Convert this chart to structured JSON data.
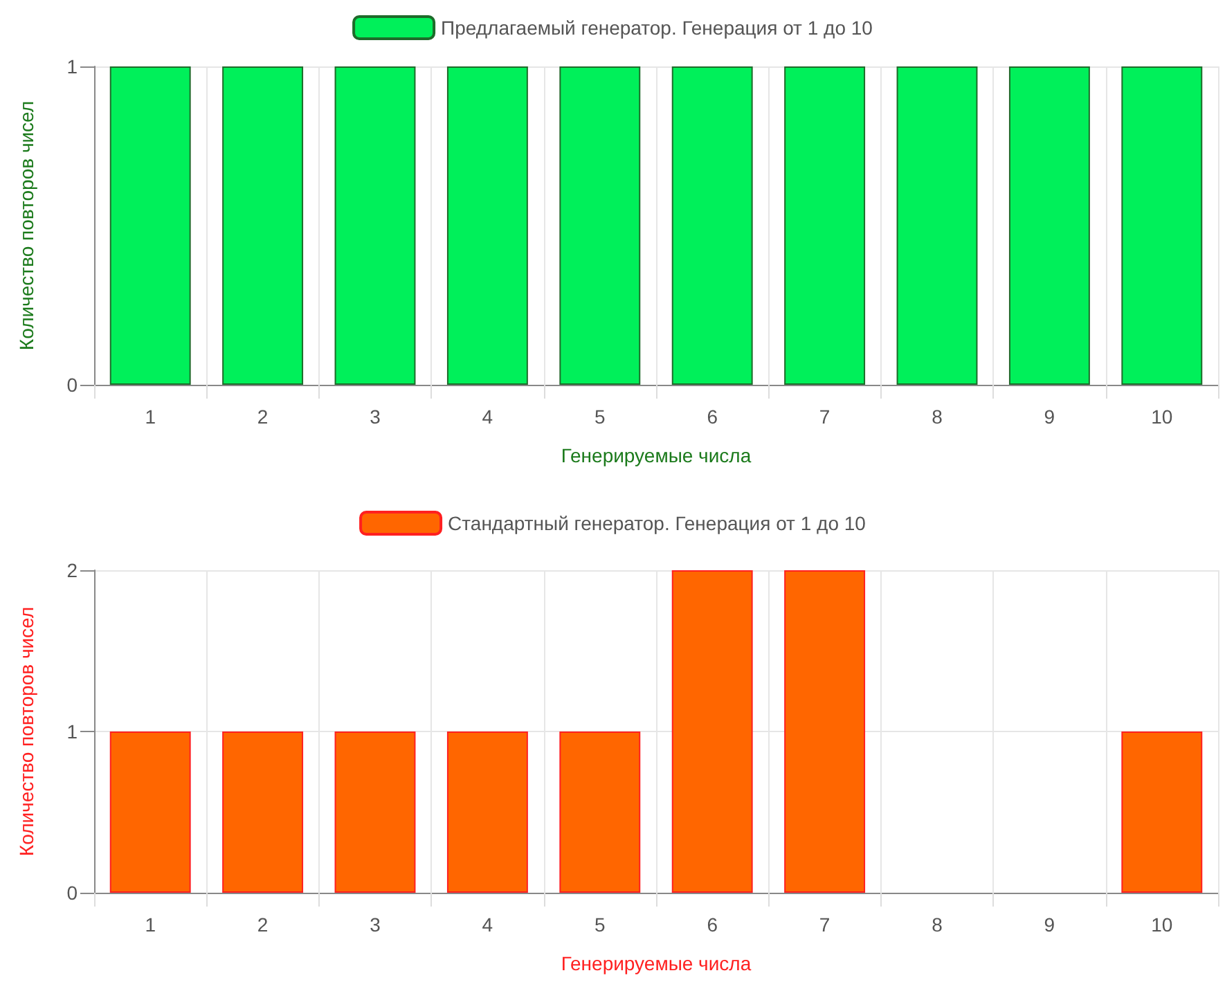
{
  "chart_data": [
    {
      "type": "bar",
      "categories": [
        "1",
        "2",
        "3",
        "4",
        "5",
        "6",
        "7",
        "8",
        "9",
        "10"
      ],
      "series": [
        {
          "name": "Предлагаемый генератор. Генерация от 1 до 10",
          "color": "#00f05a",
          "values": [
            1,
            1,
            1,
            1,
            1,
            1,
            1,
            1,
            1,
            1
          ]
        }
      ],
      "xlabel": "Генерируемые числа",
      "ylabel": "Количество повторов чисел",
      "ylim": [
        0,
        1
      ],
      "yticks": [
        0,
        1
      ],
      "grid": true,
      "legend": "top"
    },
    {
      "type": "bar",
      "categories": [
        "1",
        "2",
        "3",
        "4",
        "5",
        "6",
        "7",
        "8",
        "9",
        "10"
      ],
      "series": [
        {
          "name": "Стандартный генератор. Генерация от 1 до 10",
          "color": "#ff6600",
          "values": [
            1,
            1,
            1,
            1,
            1,
            2,
            2,
            0,
            0,
            1
          ]
        }
      ],
      "xlabel": "Генерируемые числа",
      "ylabel": "Количество повторов чисел",
      "ylim": [
        0,
        2
      ],
      "yticks": [
        0,
        1,
        2
      ],
      "grid": true,
      "legend": "top"
    }
  ]
}
